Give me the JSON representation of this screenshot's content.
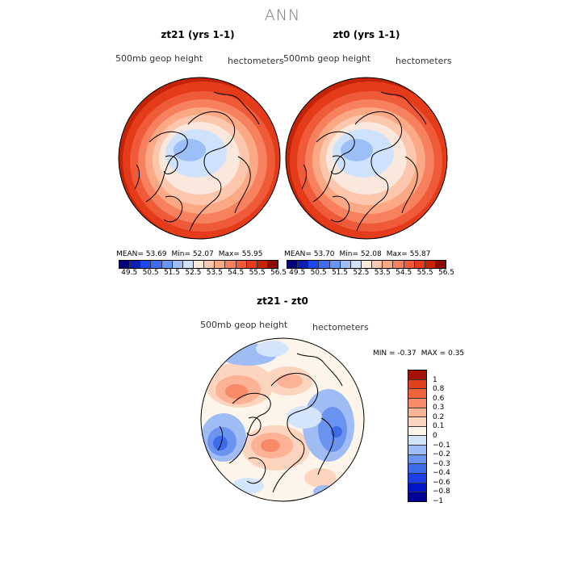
{
  "title": "ANN",
  "colors": {
    "land_outline": "#000000",
    "scale_abs": [
      "#00007d",
      "#0b1fb0",
      "#1c46e6",
      "#3e6cf0",
      "#6996f5",
      "#9cbff8",
      "#cfe2fb",
      "#fbe8dc",
      "#fcc7ac",
      "#fba884",
      "#f7805f",
      "#ef5a38",
      "#e43b1b",
      "#c42406",
      "#8d0a02"
    ],
    "scale_diff": [
      "#000096",
      "#0015c8",
      "#1e3ee6",
      "#3d6be9",
      "#6a94ef",
      "#9fbcf5",
      "#d3e4fb",
      "#fef5ea",
      "#fdd4bd",
      "#fbb295",
      "#f88a67",
      "#f0643d",
      "#e0411e",
      "#a31202"
    ]
  },
  "panels": [
    {
      "title": "zt21 (yrs 1-1)",
      "variable": "500mb geop height",
      "units": "hectometers",
      "stats": {
        "mean_label": "MEAN=",
        "mean": "53.69",
        "min_label": "Min=",
        "min": "52.07",
        "max_label": "Max=",
        "max": "55.95"
      },
      "colorbar_ticks": [
        "49.5",
        "50.5",
        "51.5",
        "52.5",
        "53.5",
        "54.5",
        "55.5",
        "56.5"
      ]
    },
    {
      "title": "zt0 (yrs 1-1)",
      "variable": "500mb geop height",
      "units": "hectometers",
      "stats": {
        "mean_label": "MEAN=",
        "mean": "53.70",
        "min_label": "Min=",
        "min": "52.08",
        "max_label": "Max=",
        "max": "55.87"
      },
      "colorbar_ticks": [
        "49.5",
        "50.5",
        "51.5",
        "52.5",
        "53.5",
        "54.5",
        "55.5",
        "56.5"
      ]
    }
  ],
  "diff": {
    "title": "zt21 - zt0",
    "variable": "500mb geop height",
    "units": "hectometers",
    "stats": {
      "min_label": "MIN =",
      "min": "-0.37",
      "max_label": "MAX =",
      "max": "0.35"
    },
    "colorbar_ticks": [
      "1",
      "0.8",
      "0.6",
      "0.3",
      "0.2",
      "0.1",
      "0",
      "−0.1",
      "−0.2",
      "−0.3",
      "−0.4",
      "−0.6",
      "−0.8",
      "−1"
    ]
  }
}
